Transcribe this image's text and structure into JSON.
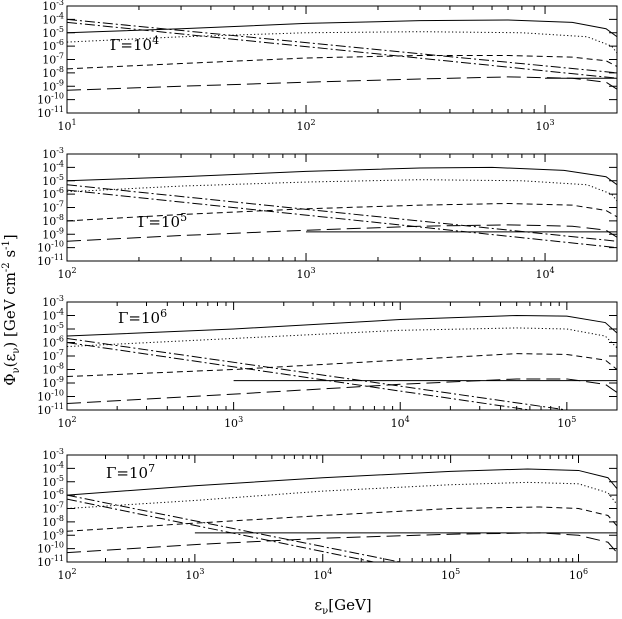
{
  "xlabel": "ε_ν[GeV]",
  "ylabel": "Φ_ν(ε_ν) [GeV cm⁻² s⁻¹]",
  "ylabel_parts": {
    "main": "Φ",
    "sub1": "ν",
    "mid": "(ε",
    "sub2": "ν",
    "unit": ") [GeV cm",
    "exp1": "-2",
    "s": " s",
    "exp2": "-1",
    "close": "]"
  },
  "xlabel_parts": {
    "main": "ε",
    "sub": "ν",
    "unit": "[GeV]"
  },
  "chart_data": [
    {
      "type": "line",
      "gamma_label": "Γ=10",
      "gamma_exp": "4",
      "xscale": "log",
      "yscale": "log",
      "xlim": [
        10,
        2000
      ],
      "ylim": [
        1e-11,
        0.001
      ],
      "xticks": [
        {
          "v": 10,
          "m": "10",
          "e": "1"
        },
        {
          "v": 100,
          "m": "10",
          "e": "2"
        },
        {
          "v": 1000,
          "m": "10",
          "e": "3"
        }
      ],
      "yticks": [
        {
          "v": 0.001,
          "e": "-3"
        },
        {
          "v": 0.0001,
          "e": "-4"
        },
        {
          "v": 1e-05,
          "e": "-5"
        },
        {
          "v": 1e-06,
          "e": "-6"
        },
        {
          "v": 1e-07,
          "e": "-7"
        },
        {
          "v": 1e-08,
          "e": "-8"
        },
        {
          "v": 1e-09,
          "e": "-9"
        },
        {
          "v": 1e-10,
          "e": "-10"
        },
        {
          "v": 1e-11,
          "e": "-11"
        }
      ],
      "series": [
        {
          "style": "solid",
          "points": [
            [
              10,
              1e-05
            ],
            [
              30,
              2e-05
            ],
            [
              100,
              5e-05
            ],
            [
              300,
              8e-05
            ],
            [
              700,
              9e-05
            ],
            [
              1300,
              6e-05
            ],
            [
              1800,
              2e-05
            ],
            [
              2000,
              5e-06
            ]
          ]
        },
        {
          "style": "dotted",
          "points": [
            [
              10,
              2e-06
            ],
            [
              30,
              5e-06
            ],
            [
              100,
              1e-05
            ],
            [
              300,
              1.2e-05
            ],
            [
              800,
              1e-05
            ],
            [
              1500,
              5e-06
            ],
            [
              1900,
              1e-06
            ],
            [
              2000,
              3e-07
            ]
          ]
        },
        {
          "style": "dashed",
          "points": [
            [
              10,
              2e-08
            ],
            [
              30,
              5e-08
            ],
            [
              100,
              1.3e-07
            ],
            [
              300,
              2e-07
            ],
            [
              700,
              2e-07
            ],
            [
              1300,
              1.5e-07
            ],
            [
              1800,
              8e-08
            ],
            [
              2000,
              3e-08
            ]
          ]
        },
        {
          "style": "longdash",
          "points": [
            [
              10,
              5e-10
            ],
            [
              30,
              1e-09
            ],
            [
              100,
              2e-09
            ],
            [
              300,
              3.5e-09
            ],
            [
              700,
              5e-09
            ],
            [
              1300,
              4e-09
            ],
            [
              1800,
              2e-09
            ],
            [
              2000,
              6e-10
            ]
          ]
        },
        {
          "style": "dashdot",
          "points": [
            [
              10,
              0.0001
            ],
            [
              2000,
              1e-08
            ]
          ]
        },
        {
          "style": "dashdot",
          "points": [
            [
              10,
              6e-05
            ],
            [
              2000,
              4e-09
            ]
          ]
        },
        {
          "style": "solid",
          "points": [
            [
              1000,
              4e-09
            ],
            [
              2000,
              4e-09
            ]
          ]
        }
      ]
    },
    {
      "type": "line",
      "gamma_label": "Γ=10",
      "gamma_exp": "5",
      "xscale": "log",
      "yscale": "log",
      "xlim": [
        100,
        20000
      ],
      "ylim": [
        1e-11,
        0.001
      ],
      "xticks": [
        {
          "v": 100,
          "m": "10",
          "e": "2"
        },
        {
          "v": 1000,
          "m": "10",
          "e": "3"
        },
        {
          "v": 10000,
          "m": "10",
          "e": "4"
        }
      ],
      "yticks": [
        {
          "v": 0.001,
          "e": "-3"
        },
        {
          "v": 0.0001,
          "e": "-4"
        },
        {
          "v": 1e-05,
          "e": "-5"
        },
        {
          "v": 1e-06,
          "e": "-6"
        },
        {
          "v": 1e-07,
          "e": "-7"
        },
        {
          "v": 1e-08,
          "e": "-8"
        },
        {
          "v": 1e-09,
          "e": "-9"
        },
        {
          "v": 1e-10,
          "e": "-10"
        },
        {
          "v": 1e-11,
          "e": "-11"
        }
      ],
      "series": [
        {
          "style": "solid",
          "points": [
            [
              100,
              1e-05
            ],
            [
              300,
              2e-05
            ],
            [
              1000,
              5e-05
            ],
            [
              3000,
              9e-05
            ],
            [
              6000,
              0.0001
            ],
            [
              12000,
              6e-05
            ],
            [
              18000,
              2e-05
            ],
            [
              20000,
              5e-06
            ]
          ]
        },
        {
          "style": "dotted",
          "points": [
            [
              100,
              1.5e-06
            ],
            [
              300,
              4e-06
            ],
            [
              1000,
              8e-06
            ],
            [
              3000,
              1.2e-05
            ],
            [
              8000,
              1e-05
            ],
            [
              15000,
              5e-06
            ],
            [
              19000,
              1e-06
            ],
            [
              20000,
              3e-07
            ]
          ]
        },
        {
          "style": "dashed",
          "points": [
            [
              100,
              1e-08
            ],
            [
              300,
              3e-08
            ],
            [
              1000,
              8e-08
            ],
            [
              3000,
              1.5e-07
            ],
            [
              7000,
              2e-07
            ],
            [
              13000,
              1.5e-07
            ],
            [
              18000,
              6e-08
            ],
            [
              20000,
              2e-08
            ]
          ]
        },
        {
          "style": "longdash",
          "points": [
            [
              100,
              3e-10
            ],
            [
              300,
              8e-10
            ],
            [
              1000,
              2e-09
            ],
            [
              3000,
              4e-09
            ],
            [
              7000,
              5e-09
            ],
            [
              13000,
              4e-09
            ],
            [
              18000,
              2e-09
            ],
            [
              20000,
              6e-10
            ]
          ]
        },
        {
          "style": "dashdot",
          "points": [
            [
              100,
              5e-06
            ],
            [
              20000,
              3e-10
            ]
          ]
        },
        {
          "style": "dashdot",
          "points": [
            [
              100,
              2e-06
            ],
            [
              20000,
              1e-10
            ]
          ]
        },
        {
          "style": "solid",
          "points": [
            [
              1000,
              1.5e-09
            ],
            [
              20000,
              1.5e-09
            ]
          ]
        }
      ]
    },
    {
      "type": "line",
      "gamma_label": "Γ=10",
      "gamma_exp": "6",
      "xscale": "log",
      "yscale": "log",
      "xlim": [
        100,
        200000
      ],
      "ylim": [
        1e-11,
        0.001
      ],
      "xticks": [
        {
          "v": 100,
          "m": "10",
          "e": "2"
        },
        {
          "v": 1000,
          "m": "10",
          "e": "3"
        },
        {
          "v": 10000,
          "m": "10",
          "e": "4"
        },
        {
          "v": 100000,
          "m": "10",
          "e": "5"
        }
      ],
      "yticks": [
        {
          "v": 0.001,
          "e": "-3"
        },
        {
          "v": 0.0001,
          "e": "-4"
        },
        {
          "v": 1e-05,
          "e": "-5"
        },
        {
          "v": 1e-06,
          "e": "-6"
        },
        {
          "v": 1e-07,
          "e": "-7"
        },
        {
          "v": 1e-08,
          "e": "-8"
        },
        {
          "v": 1e-09,
          "e": "-9"
        },
        {
          "v": 1e-10,
          "e": "-10"
        },
        {
          "v": 1e-11,
          "e": "-11"
        }
      ],
      "series": [
        {
          "style": "solid",
          "points": [
            [
              100,
              3e-06
            ],
            [
              1000,
              1e-05
            ],
            [
              10000,
              5e-05
            ],
            [
              50000,
              0.0001
            ],
            [
              100000,
              9e-05
            ],
            [
              170000,
              3e-05
            ],
            [
              200000,
              5e-06
            ]
          ]
        },
        {
          "style": "dotted",
          "points": [
            [
              100,
              5e-07
            ],
            [
              1000,
              2e-06
            ],
            [
              10000,
              8e-06
            ],
            [
              50000,
              1.2e-05
            ],
            [
              100000,
              1e-05
            ],
            [
              170000,
              3e-06
            ],
            [
              200000,
              4e-07
            ]
          ]
        },
        {
          "style": "dashed",
          "points": [
            [
              100,
              3e-09
            ],
            [
              1000,
              1e-08
            ],
            [
              10000,
              5e-08
            ],
            [
              50000,
              1.5e-07
            ],
            [
              100000,
              1.3e-07
            ],
            [
              170000,
              5e-08
            ],
            [
              200000,
              1e-08
            ]
          ]
        },
        {
          "style": "longdash",
          "points": [
            [
              100,
              3e-11
            ],
            [
              1000,
              1.5e-10
            ],
            [
              10000,
              8e-10
            ],
            [
              50000,
              2e-09
            ],
            [
              100000,
              2e-09
            ],
            [
              170000,
              8e-10
            ],
            [
              200000,
              2e-10
            ]
          ]
        },
        {
          "style": "dashdot",
          "points": [
            [
              100,
              2e-06
            ],
            [
              100000,
              1e-11
            ]
          ]
        },
        {
          "style": "dashdot",
          "points": [
            [
              100,
              1e-06
            ],
            [
              60000,
              1e-11
            ]
          ]
        },
        {
          "style": "solid",
          "points": [
            [
              1000,
              1.5e-09
            ],
            [
              200000,
              1.5e-09
            ]
          ]
        }
      ]
    },
    {
      "type": "line",
      "gamma_label": "Γ=10",
      "gamma_exp": "7",
      "xscale": "log",
      "yscale": "log",
      "xlim": [
        100,
        2000000
      ],
      "ylim": [
        1e-11,
        0.001
      ],
      "xticks": [
        {
          "v": 100,
          "m": "10",
          "e": "2"
        },
        {
          "v": 1000,
          "m": "10",
          "e": "3"
        },
        {
          "v": 10000,
          "m": "10",
          "e": "4"
        },
        {
          "v": 100000,
          "m": "10",
          "e": "5"
        },
        {
          "v": 1000000,
          "m": "10",
          "e": "6"
        }
      ],
      "yticks": [
        {
          "v": 0.001,
          "e": "-3"
        },
        {
          "v": 0.0001,
          "e": "-4"
        },
        {
          "v": 1e-05,
          "e": "-5"
        },
        {
          "v": 1e-06,
          "e": "-6"
        },
        {
          "v": 1e-07,
          "e": "-7"
        },
        {
          "v": 1e-08,
          "e": "-8"
        },
        {
          "v": 1e-09,
          "e": "-9"
        },
        {
          "v": 1e-10,
          "e": "-10"
        },
        {
          "v": 1e-11,
          "e": "-11"
        }
      ],
      "series": [
        {
          "style": "solid",
          "points": [
            [
              100,
              1e-06
            ],
            [
              1000,
              5e-06
            ],
            [
              10000,
              2e-05
            ],
            [
              100000,
              6e-05
            ],
            [
              400000,
              9e-05
            ],
            [
              1000000,
              7e-05
            ],
            [
              1700000,
              2e-05
            ],
            [
              2000000,
              3e-06
            ]
          ]
        },
        {
          "style": "dotted",
          "points": [
            [
              100,
              1e-07
            ],
            [
              1000,
              4e-07
            ],
            [
              10000,
              2e-06
            ],
            [
              100000,
              6e-06
            ],
            [
              400000,
              9e-06
            ],
            [
              1000000,
              7e-06
            ],
            [
              1700000,
              1.5e-06
            ],
            [
              2000000,
              2e-07
            ]
          ]
        },
        {
          "style": "dashed",
          "points": [
            [
              100,
              2e-09
            ],
            [
              1000,
              8e-09
            ],
            [
              10000,
              3e-08
            ],
            [
              100000,
              1e-07
            ],
            [
              500000,
              1.3e-07
            ],
            [
              1000000,
              1e-07
            ],
            [
              1700000,
              3e-08
            ],
            [
              2000000,
              5e-09
            ]
          ]
        },
        {
          "style": "longdash",
          "points": [
            [
              100,
              5e-11
            ],
            [
              1000,
              2e-10
            ],
            [
              10000,
              6e-10
            ],
            [
              100000,
              1.2e-09
            ],
            [
              500000,
              1.5e-09
            ],
            [
              1000000,
              1e-09
            ],
            [
              1700000,
              3e-10
            ],
            [
              2000000,
              5e-11
            ]
          ]
        },
        {
          "style": "dashdot",
          "points": [
            [
              100,
              1e-06
            ],
            [
              40000,
              1e-11
            ]
          ]
        },
        {
          "style": "dashdot",
          "points": [
            [
              100,
              5e-07
            ],
            [
              25000,
              1e-11
            ]
          ]
        },
        {
          "style": "solid",
          "points": [
            [
              1000,
              1.5e-09
            ],
            [
              2000000,
              1.5e-09
            ]
          ]
        }
      ]
    }
  ]
}
